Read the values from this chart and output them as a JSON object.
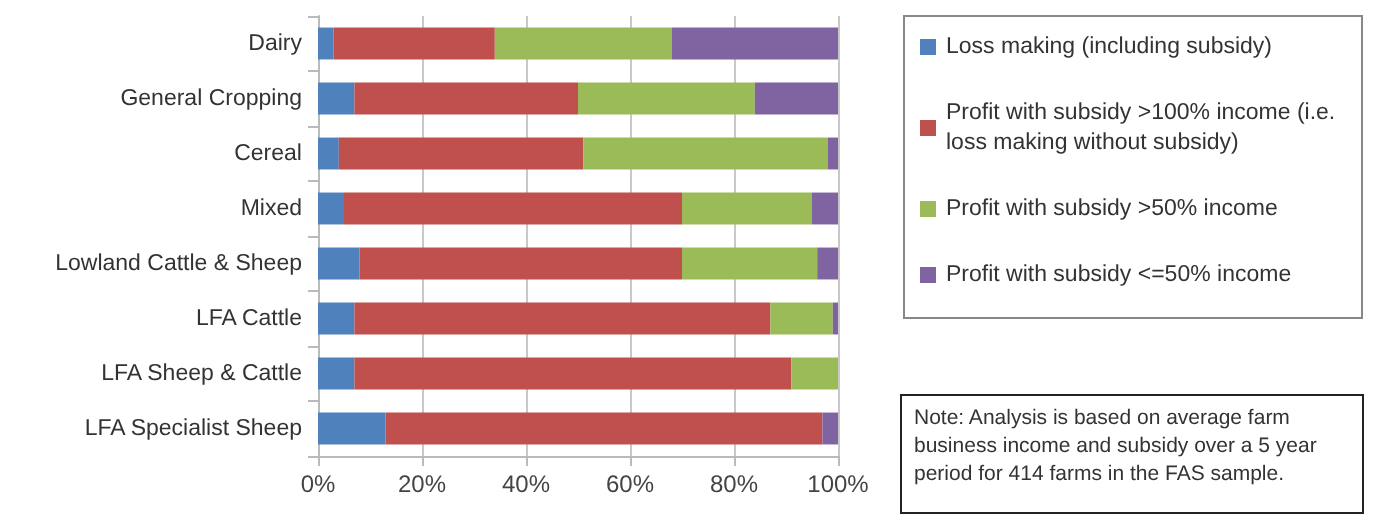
{
  "chart_data": {
    "type": "bar",
    "orientation": "horizontal",
    "stacked": true,
    "categories": [
      "Dairy",
      "General Cropping",
      "Cereal",
      "Mixed",
      "Lowland Cattle & Sheep",
      "LFA Cattle",
      "LFA Sheep & Cattle",
      "LFA Specialist Sheep"
    ],
    "series": [
      {
        "name": "Loss making (including subsidy)",
        "color": "#4f81bd",
        "values": [
          3,
          7,
          4,
          5,
          8,
          7,
          7,
          13
        ]
      },
      {
        "name": "Profit with subsidy >100% income (i.e. loss making without subsidy)",
        "color": "#c0504d",
        "values": [
          31,
          43,
          47,
          65,
          62,
          80,
          84,
          84
        ]
      },
      {
        "name": "Profit with subsidy >50% income",
        "color": "#9bbb59",
        "values": [
          34,
          34,
          47,
          25,
          26,
          12,
          9,
          0
        ]
      },
      {
        "name": "Profit with subsidy <=50% income",
        "color": "#8064a2",
        "values": [
          32,
          16,
          2,
          5,
          4,
          1,
          0,
          3
        ]
      }
    ],
    "xlim": [
      0,
      100
    ],
    "xticks": [
      {
        "value": 0,
        "label": "0%"
      },
      {
        "value": 20,
        "label": "20%"
      },
      {
        "value": 40,
        "label": "40%"
      },
      {
        "value": 60,
        "label": "60%"
      },
      {
        "value": 80,
        "label": "80%"
      },
      {
        "value": 100,
        "label": "100%"
      }
    ],
    "grid": "x",
    "legend": "right",
    "annotations": [
      "Note:  Analysis is based on average farm business income and subsidy over a 5 year period for 414 farms in the FAS sample."
    ]
  }
}
